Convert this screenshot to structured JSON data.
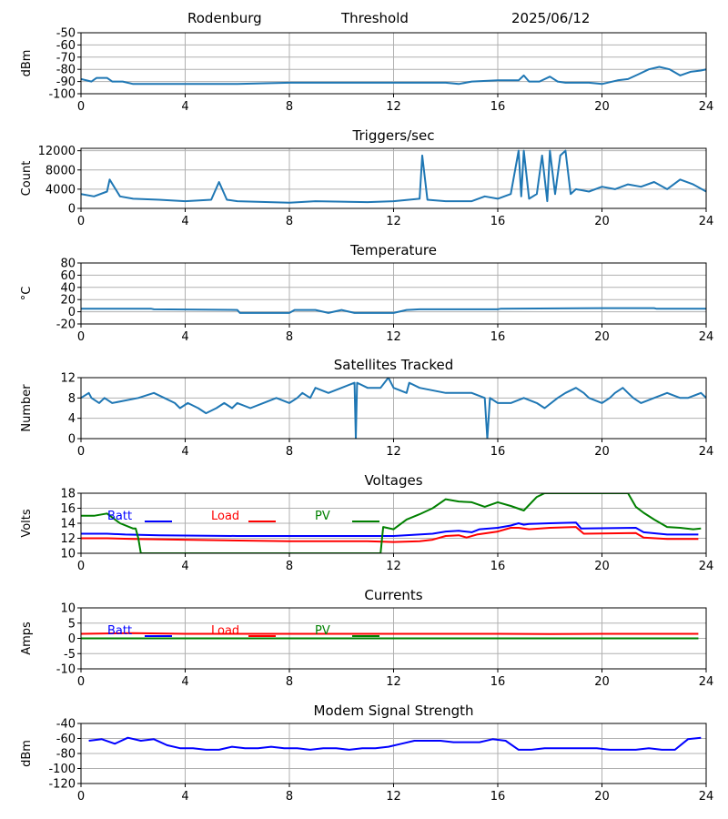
{
  "header": {
    "station": "Rodenburg",
    "mode": "Threshold",
    "date": "2025/06/12"
  },
  "colors": {
    "default_line": "#1f77b4",
    "batt": "#0000ff",
    "load": "#ff0000",
    "pv": "#008000",
    "grid": "#b0b0b0"
  },
  "chart_data": [
    {
      "type": "line",
      "title": "",
      "ylabel": "dBm",
      "xlim": [
        0,
        24
      ],
      "xticks": [
        0,
        4,
        8,
        12,
        16,
        20,
        24
      ],
      "ylim": [
        -100,
        -50
      ],
      "yticks": [
        -100,
        -90,
        -80,
        -70,
        -60,
        -50
      ],
      "grid": true,
      "series": [
        {
          "color": "#1f77b4",
          "x": [
            0,
            0.4,
            0.6,
            1.0,
            1.2,
            1.6,
            2,
            3,
            4,
            6,
            8,
            10,
            12,
            13,
            14,
            14.5,
            15,
            16,
            16.8,
            17,
            17.2,
            17.6,
            18,
            18.3,
            18.6,
            19,
            19.5,
            20,
            20.6,
            21,
            21.4,
            21.8,
            22.2,
            22.6,
            23,
            23.4,
            23.8,
            24
          ],
          "y": [
            -88,
            -90,
            -87,
            -87,
            -90,
            -90,
            -92,
            -92,
            -92,
            -92,
            -91,
            -91,
            -91,
            -91,
            -91,
            -92,
            -90,
            -89,
            -89,
            -85,
            -90,
            -90,
            -86,
            -90,
            -91,
            -91,
            -91,
            -92,
            -89,
            -88,
            -84,
            -80,
            -78,
            -80,
            -85,
            -82,
            -81,
            -80
          ]
        }
      ]
    },
    {
      "type": "line",
      "title": "Triggers/sec",
      "ylabel": "Count",
      "xlim": [
        0,
        24
      ],
      "xticks": [
        0,
        4,
        8,
        12,
        16,
        20,
        24
      ],
      "ylim": [
        0,
        12500
      ],
      "yticks": [
        0,
        4000,
        8000,
        12000
      ],
      "grid": true,
      "series": [
        {
          "color": "#1f77b4",
          "x": [
            0,
            0.5,
            1,
            1.1,
            1.5,
            2,
            3,
            4,
            5,
            5.3,
            5.6,
            6,
            8,
            9,
            10,
            11,
            12,
            13,
            13.1,
            13.3,
            14,
            15,
            15.5,
            16,
            16.5,
            16.8,
            16.9,
            17.0,
            17.2,
            17.5,
            17.7,
            17.9,
            18.0,
            18.2,
            18.4,
            18.6,
            18.8,
            19,
            19.5,
            20,
            20.5,
            21,
            21.5,
            22,
            22.5,
            23,
            23.5,
            24
          ],
          "y": [
            3000,
            2500,
            3500,
            6000,
            2500,
            2000,
            1800,
            1500,
            1800,
            5500,
            1800,
            1500,
            1200,
            1500,
            1400,
            1300,
            1500,
            2000,
            11000,
            1800,
            1500,
            1500,
            2500,
            2000,
            3000,
            12000,
            2500,
            12000,
            2000,
            3000,
            11000,
            1500,
            12000,
            3000,
            11000,
            12000,
            3000,
            4000,
            3500,
            4500,
            4000,
            5000,
            4500,
            5500,
            4000,
            6000,
            5000,
            3500
          ]
        }
      ]
    },
    {
      "type": "line",
      "title": "Temperature",
      "ylabel": "°C",
      "xlim": [
        0,
        24
      ],
      "xticks": [
        0,
        4,
        8,
        12,
        16,
        20,
        24
      ],
      "ylim": [
        -20,
        80
      ],
      "yticks": [
        -20,
        0,
        20,
        40,
        60,
        80
      ],
      "grid": true,
      "series": [
        {
          "color": "#1f77b4",
          "x": [
            0,
            2.7,
            2.8,
            6.0,
            6.1,
            6.5,
            7,
            7.5,
            8,
            8.2,
            9,
            9.5,
            10,
            10.5,
            11,
            11.5,
            12,
            12.5,
            13,
            16,
            16.1,
            20,
            22,
            22.1,
            24
          ],
          "y": [
            5,
            5,
            4,
            3,
            -2,
            -2,
            -2,
            -2,
            -2,
            3,
            3,
            -2,
            3,
            -2,
            -2,
            -2,
            -2,
            3,
            4,
            4,
            5,
            6,
            6,
            5,
            5
          ]
        }
      ]
    },
    {
      "type": "line",
      "title": "Satellites Tracked",
      "ylabel": "Number",
      "xlim": [
        0,
        24
      ],
      "xticks": [
        0,
        4,
        8,
        12,
        16,
        20,
        24
      ],
      "ylim": [
        0,
        12
      ],
      "yticks": [
        0,
        4,
        8,
        12
      ],
      "grid": true,
      "series": [
        {
          "color": "#1f77b4",
          "x": [
            0,
            0.3,
            0.4,
            0.7,
            0.9,
            1.2,
            2.2,
            2.8,
            3.2,
            3.6,
            3.8,
            4.1,
            4.5,
            4.8,
            5.2,
            5.5,
            5.8,
            6,
            6.5,
            7,
            7.5,
            8,
            8.3,
            8.5,
            8.8,
            9,
            9.5,
            10,
            10.5,
            10.55,
            10.6,
            11,
            11.5,
            11.8,
            12,
            12.5,
            12.6,
            13,
            14,
            15,
            15.5,
            15.6,
            15.7,
            16.0,
            16.5,
            17.0,
            17.5,
            17.8,
            18.3,
            18.6,
            19,
            19.3,
            19.5,
            20,
            20.3,
            20.5,
            20.8,
            21,
            21.2,
            21.5,
            22,
            22.5,
            23,
            23.3,
            23.8,
            24
          ],
          "y": [
            8,
            9,
            8,
            7,
            8,
            7,
            8,
            9,
            8,
            7,
            6,
            7,
            6,
            5,
            6,
            7,
            6,
            7,
            6,
            7,
            8,
            7,
            8,
            9,
            8,
            10,
            9,
            10,
            11,
            0,
            11,
            10,
            10,
            12,
            10,
            9,
            11,
            10,
            9,
            9,
            8,
            0,
            8,
            7,
            7,
            8,
            7,
            6,
            8,
            9,
            10,
            9,
            8,
            7,
            8,
            9,
            10,
            9,
            8,
            7,
            8,
            9,
            8,
            8,
            9,
            8
          ]
        }
      ]
    },
    {
      "type": "line",
      "title": "Voltages",
      "ylabel": "Volts",
      "xlim": [
        0,
        24
      ],
      "xticks": [
        0,
        4,
        8,
        12,
        16,
        20,
        24
      ],
      "ylim": [
        10,
        18
      ],
      "yticks": [
        10,
        12,
        14,
        16,
        18
      ],
      "grid": true,
      "legend": "top-left",
      "series": [
        {
          "name": "Batt",
          "color": "#0000ff",
          "x": [
            0,
            1,
            1.7,
            3,
            6,
            9,
            12,
            13.5,
            14,
            14.5,
            15,
            15.3,
            16,
            16.5,
            16.8,
            17,
            17.2,
            18,
            19,
            19.2,
            21.3,
            21.6,
            22.5,
            23.7
          ],
          "y": [
            12.6,
            12.6,
            12.5,
            12.4,
            12.3,
            12.3,
            12.3,
            12.6,
            12.9,
            13,
            12.8,
            13.2,
            13.4,
            13.7,
            14,
            13.8,
            13.9,
            14,
            14.1,
            13.3,
            13.4,
            12.8,
            12.5,
            12.5
          ]
        },
        {
          "name": "Load",
          "color": "#ff0000",
          "x": [
            0,
            1,
            2,
            4,
            8,
            11,
            12,
            13,
            13.5,
            14,
            14.5,
            14.8,
            15.2,
            16,
            16.5,
            16.8,
            17.2,
            18,
            19,
            19.3,
            21.3,
            21.6,
            22.5,
            23.7
          ],
          "y": [
            12,
            12,
            11.9,
            11.8,
            11.6,
            11.6,
            11.5,
            11.6,
            11.8,
            12.3,
            12.4,
            12.1,
            12.5,
            12.9,
            13.4,
            13.4,
            13.2,
            13.4,
            13.5,
            12.6,
            12.7,
            12.1,
            11.9,
            11.9
          ]
        },
        {
          "name": "PV",
          "color": "#008000",
          "x": [
            0,
            0.5,
            1,
            1.5,
            2,
            2.1,
            2.2,
            2.3,
            11.5,
            11.6,
            12,
            12.5,
            13,
            13.5,
            14,
            14.5,
            15,
            15.5,
            16,
            16.5,
            17,
            17.5,
            17.8,
            21,
            21.3,
            21.6,
            22,
            22.5,
            23,
            23.5,
            23.8
          ],
          "y": [
            15,
            15,
            15.3,
            14,
            13.3,
            13.3,
            12,
            10,
            10,
            13.5,
            13.2,
            14.5,
            15.2,
            16,
            17.2,
            16.9,
            16.8,
            16.2,
            16.8,
            16.3,
            15.7,
            17.5,
            18,
            18,
            16.2,
            15.4,
            14.5,
            13.5,
            13.4,
            13.2,
            13.3
          ]
        }
      ]
    },
    {
      "type": "line",
      "title": "Currents",
      "ylabel": "Amps",
      "xlim": [
        0,
        24
      ],
      "xticks": [
        0,
        4,
        8,
        12,
        16,
        20,
        24
      ],
      "ylim": [
        -10,
        10
      ],
      "yticks": [
        -10,
        -5,
        0,
        5,
        10
      ],
      "grid": true,
      "legend": "top-left",
      "series": [
        {
          "name": "Batt",
          "color": "#0000ff",
          "x": [
            0,
            23.7
          ],
          "y": [
            0,
            0
          ]
        },
        {
          "name": "Load",
          "color": "#ff0000",
          "x": [
            0,
            1,
            2,
            4,
            8,
            12,
            16,
            18,
            20,
            22,
            23.7
          ],
          "y": [
            1.5,
            1.6,
            1.7,
            1.5,
            1.5,
            1.5,
            1.5,
            1.4,
            1.5,
            1.5,
            1.5
          ]
        },
        {
          "name": "PV",
          "color": "#008000",
          "x": [
            0,
            23.7
          ],
          "y": [
            0,
            0
          ]
        }
      ]
    },
    {
      "type": "line",
      "title": "Modem Signal Strength",
      "ylabel": "dBm",
      "xlim": [
        0,
        24
      ],
      "xticks": [
        0,
        4,
        8,
        12,
        16,
        20,
        24
      ],
      "ylim": [
        -120,
        -40
      ],
      "yticks": [
        -120,
        -100,
        -80,
        -60,
        -40
      ],
      "grid": true,
      "series": [
        {
          "color": "#0000ff",
          "x": [
            0.3,
            0.8,
            1.3,
            1.8,
            2.3,
            2.8,
            3.3,
            3.8,
            4.3,
            4.8,
            5.3,
            5.8,
            6.3,
            6.8,
            7.3,
            7.8,
            8.3,
            8.8,
            9.3,
            9.8,
            10.3,
            10.8,
            11.3,
            11.8,
            12.3,
            12.8,
            13.3,
            13.8,
            14.3,
            14.8,
            15.3,
            15.8,
            16.3,
            16.8,
            17.3,
            17.8,
            18.3,
            18.8,
            19.3,
            19.8,
            20.3,
            20.8,
            21.3,
            21.8,
            22.3,
            22.8,
            23.3,
            23.8
          ],
          "y": [
            -63,
            -61,
            -67,
            -59,
            -63,
            -61,
            -69,
            -73,
            -73,
            -75,
            -75,
            -71,
            -73,
            -73,
            -71,
            -73,
            -73,
            -75,
            -73,
            -73,
            -75,
            -73,
            -73,
            -71,
            -67,
            -63,
            -63,
            -63,
            -65,
            -65,
            -65,
            -61,
            -63,
            -75,
            -75,
            -73,
            -73,
            -73,
            -73,
            -73,
            -75,
            -75,
            -75,
            -73,
            -75,
            -75,
            -61,
            -59
          ]
        }
      ]
    }
  ]
}
